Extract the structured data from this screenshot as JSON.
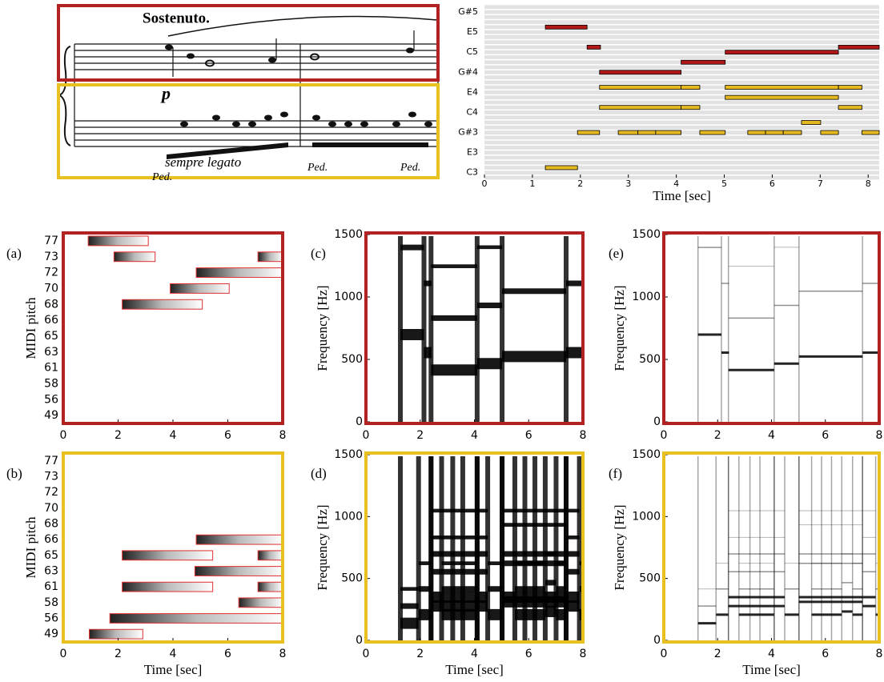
{
  "score": {
    "tempo": "Sostenuto.",
    "dynamic": "p",
    "expression": "sempre legato",
    "pedal": [
      "Ped.",
      "Ped.",
      "Ped."
    ]
  },
  "chart_data": [
    {
      "type": "pianoroll",
      "xlabel": "Time [sec]",
      "xlim": [
        0,
        8.23
      ],
      "xticks": [
        0,
        1,
        2,
        3,
        4,
        5,
        6,
        7,
        8
      ],
      "ylim": [
        47,
        81.6
      ],
      "yticks": [
        {
          "value": 80,
          "label": "G#5"
        },
        {
          "value": 76,
          "label": "E5"
        },
        {
          "value": 72,
          "label": "C5"
        },
        {
          "value": 68,
          "label": "G#4"
        },
        {
          "value": 64,
          "label": "E4"
        },
        {
          "value": 60,
          "label": "C4"
        },
        {
          "value": 56,
          "label": "G#3"
        },
        {
          "value": 52,
          "label": "E3"
        },
        {
          "value": 48,
          "label": "C3"
        }
      ],
      "row_color": "#e2e2e2",
      "series": [
        {
          "color": "#b01818",
          "pitch": [
            77,
            73,
            68,
            70,
            72,
            73
          ],
          "start": [
            1.27,
            2.14,
            2.4,
            4.1,
            5.02,
            7.38
          ],
          "end": [
            2.14,
            2.42,
            4.1,
            5.02,
            7.38,
            8.23
          ]
        },
        {
          "color": "#e6b820",
          "pitch": [
            65,
            65,
            65,
            65,
            63,
            61,
            61,
            61,
            58,
            56,
            56,
            56,
            56,
            56,
            56,
            56,
            56,
            56,
            56,
            49
          ],
          "start": [
            2.4,
            4.1,
            5.02,
            7.38,
            5.02,
            2.4,
            4.1,
            7.38,
            6.61,
            1.94,
            2.79,
            3.2,
            3.57,
            4.49,
            5.49,
            5.86,
            6.23,
            7.01,
            7.87,
            1.27
          ],
          "end": [
            4.1,
            4.49,
            7.38,
            7.87,
            7.38,
            4.1,
            4.49,
            7.87,
            7.01,
            2.4,
            3.2,
            3.57,
            4.1,
            5.02,
            5.86,
            6.23,
            6.61,
            7.38,
            8.23,
            1.94
          ]
        }
      ]
    },
    {
      "type": "activation",
      "label": "(a)",
      "ylabel": "MIDI pitch",
      "frame_color": "#b22222",
      "box_color": "#e03030",
      "categories": [
        "77",
        "73",
        "72",
        "70",
        "68",
        "66",
        "65",
        "63",
        "61",
        "58",
        "56",
        "49"
      ],
      "xlim": [
        0,
        8
      ],
      "xticks": [
        0,
        2,
        4,
        6,
        8
      ],
      "boxes": {
        "row": [
          0,
          1,
          1,
          2,
          3,
          4
        ],
        "start": [
          0.91,
          1.85,
          7.1,
          4.85,
          3.9,
          2.15
        ],
        "end": [
          3.1,
          3.35,
          8,
          8,
          6.05,
          5.07
        ]
      }
    },
    {
      "type": "activation",
      "label": "(b)",
      "ylabel": "MIDI pitch",
      "xlabel": "Time [sec]",
      "frame_color": "#e8c020",
      "box_color": "#e03030",
      "categories": [
        "77",
        "73",
        "72",
        "70",
        "68",
        "66",
        "65",
        "63",
        "61",
        "58",
        "56",
        "49"
      ],
      "xlim": [
        0,
        8
      ],
      "xticks": [
        0,
        2,
        4,
        6,
        8
      ],
      "boxes": {
        "row": [
          5,
          6,
          6,
          7,
          8,
          8,
          9,
          10,
          11
        ],
        "start": [
          4.85,
          2.15,
          7.1,
          4.8,
          2.15,
          7.1,
          6.4,
          1.7,
          0.95
        ],
        "end": [
          8,
          5.45,
          8,
          8,
          5.45,
          8,
          8,
          8,
          2.9
        ]
      }
    },
    {
      "type": "spectrogram",
      "label": "(c)",
      "ylabel": "Frequency [Hz]",
      "frame_color": "#b22222",
      "xlim": [
        0,
        8
      ],
      "xticks": [
        0,
        2,
        4,
        6,
        8
      ],
      "ylim": [
        0,
        1500
      ],
      "yticks": [
        0,
        500,
        1000,
        1500
      ]
    },
    {
      "type": "spectrogram",
      "label": "(d)",
      "ylabel": "Frequency [Hz]",
      "xlabel": "Time [sec]",
      "frame_color": "#e8c020",
      "xlim": [
        0,
        8
      ],
      "xticks": [
        0,
        2,
        4,
        6,
        8
      ],
      "ylim": [
        0,
        1500
      ],
      "yticks": [
        0,
        500,
        1000,
        1500
      ]
    },
    {
      "type": "spectrogram",
      "label": "(e)",
      "ylabel": "Frequency [Hz]",
      "frame_color": "#b22222",
      "xlim": [
        0,
        8
      ],
      "xticks": [
        0,
        2,
        4,
        6,
        8
      ],
      "ylim": [
        0,
        1500
      ],
      "yticks": [
        0,
        500,
        1000,
        1500
      ]
    },
    {
      "type": "spectrogram",
      "label": "(f)",
      "ylabel": "Frequency [Hz]",
      "xlabel": "Time [sec]",
      "frame_color": "#e8c020",
      "xlim": [
        0,
        8
      ],
      "xticks": [
        0,
        2,
        4,
        6,
        8
      ],
      "ylim": [
        0,
        1500
      ],
      "yticks": [
        0,
        500,
        1000,
        1500
      ]
    }
  ]
}
